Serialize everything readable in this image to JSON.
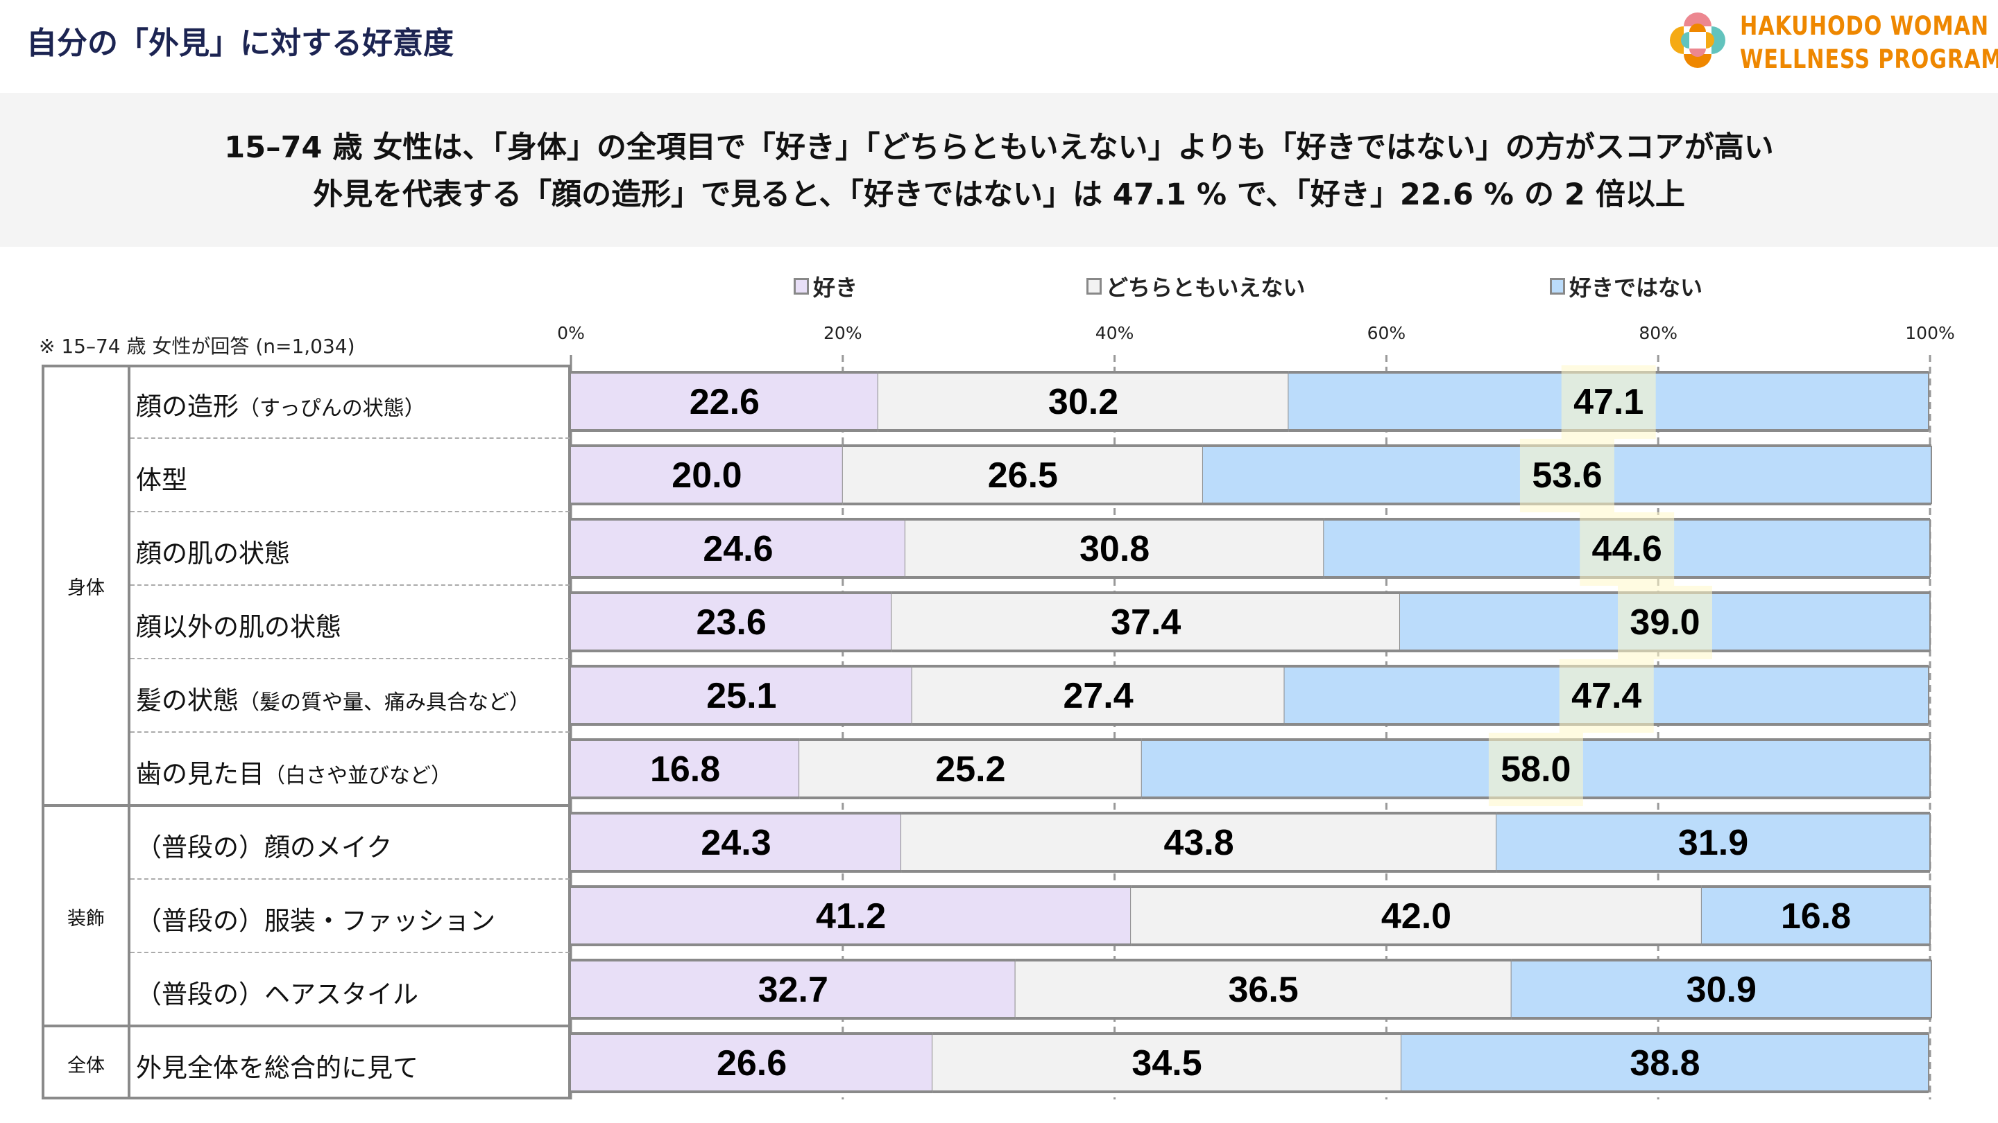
{
  "header": {
    "title": "自分の「外見」に対する好意度"
  },
  "logo": {
    "line1": "HAKUHODO WOMAN",
    "line2": "WELLNESS PROGRAM",
    "colors": {
      "pink": "#ec8790",
      "yellow": "#f5aa14",
      "teal": "#62c3bd",
      "orange": "#ef8700"
    }
  },
  "summary": {
    "line1": "15–74 歳 女性は、「身体」の全項目で「好き」「どちらともいえない」よりも「好きではない」の方がスコアが高い",
    "line2": "外見を代表する「顔の造形」で見ると、「好きではない」は 47.1 % で、「好き」22.6 % の 2 倍以上"
  },
  "note": "※ 15–74 歳 女性が回答 (n=1,034)",
  "chart_data": {
    "type": "bar",
    "stacked": true,
    "orientation": "horizontal",
    "xlim": [
      0,
      100
    ],
    "x_ticks": [
      "0%",
      "20%",
      "40%",
      "60%",
      "80%",
      "100%"
    ],
    "legend_position": "top",
    "series": [
      {
        "name": "好き",
        "color": "#e8dff7",
        "values": [
          22.6,
          20.0,
          24.6,
          23.6,
          25.1,
          16.8,
          24.3,
          41.2,
          32.7,
          26.6
        ]
      },
      {
        "name": "どちらともいえない",
        "color": "#f2f2f2",
        "values": [
          30.2,
          26.5,
          30.8,
          37.4,
          27.4,
          25.2,
          43.8,
          42.0,
          36.5,
          34.5
        ]
      },
      {
        "name": "好きではない",
        "color": "#bbdcfb",
        "values": [
          47.1,
          53.6,
          44.6,
          39.0,
          47.4,
          58.0,
          31.9,
          16.8,
          30.9,
          38.8
        ]
      }
    ],
    "highlighted_series": "好きではない",
    "highlight_rows": [
      0,
      1,
      2,
      3,
      4,
      5
    ],
    "groups": [
      {
        "label": "身体",
        "rows": 6
      },
      {
        "label": "装飾",
        "rows": 3
      },
      {
        "label": "全体",
        "rows": 1
      }
    ],
    "categories": [
      {
        "main": "顔の造形",
        "sub": "（すっぴんの状態）"
      },
      {
        "main": "体型",
        "sub": ""
      },
      {
        "main": "顔の肌の状態",
        "sub": ""
      },
      {
        "main": "顔以外の肌の状態",
        "sub": ""
      },
      {
        "main": "髪の状態",
        "sub": "（髪の質や量、痛み具合など）"
      },
      {
        "main": "歯の見た目",
        "sub": "（白さや並びなど）"
      },
      {
        "main": "（普段の）顔のメイク",
        "sub": ""
      },
      {
        "main": "（普段の）服装・ファッション",
        "sub": ""
      },
      {
        "main": "（普段の）ヘアスタイル",
        "sub": ""
      },
      {
        "main": "外見全体を総合的に見て",
        "sub": ""
      }
    ]
  }
}
